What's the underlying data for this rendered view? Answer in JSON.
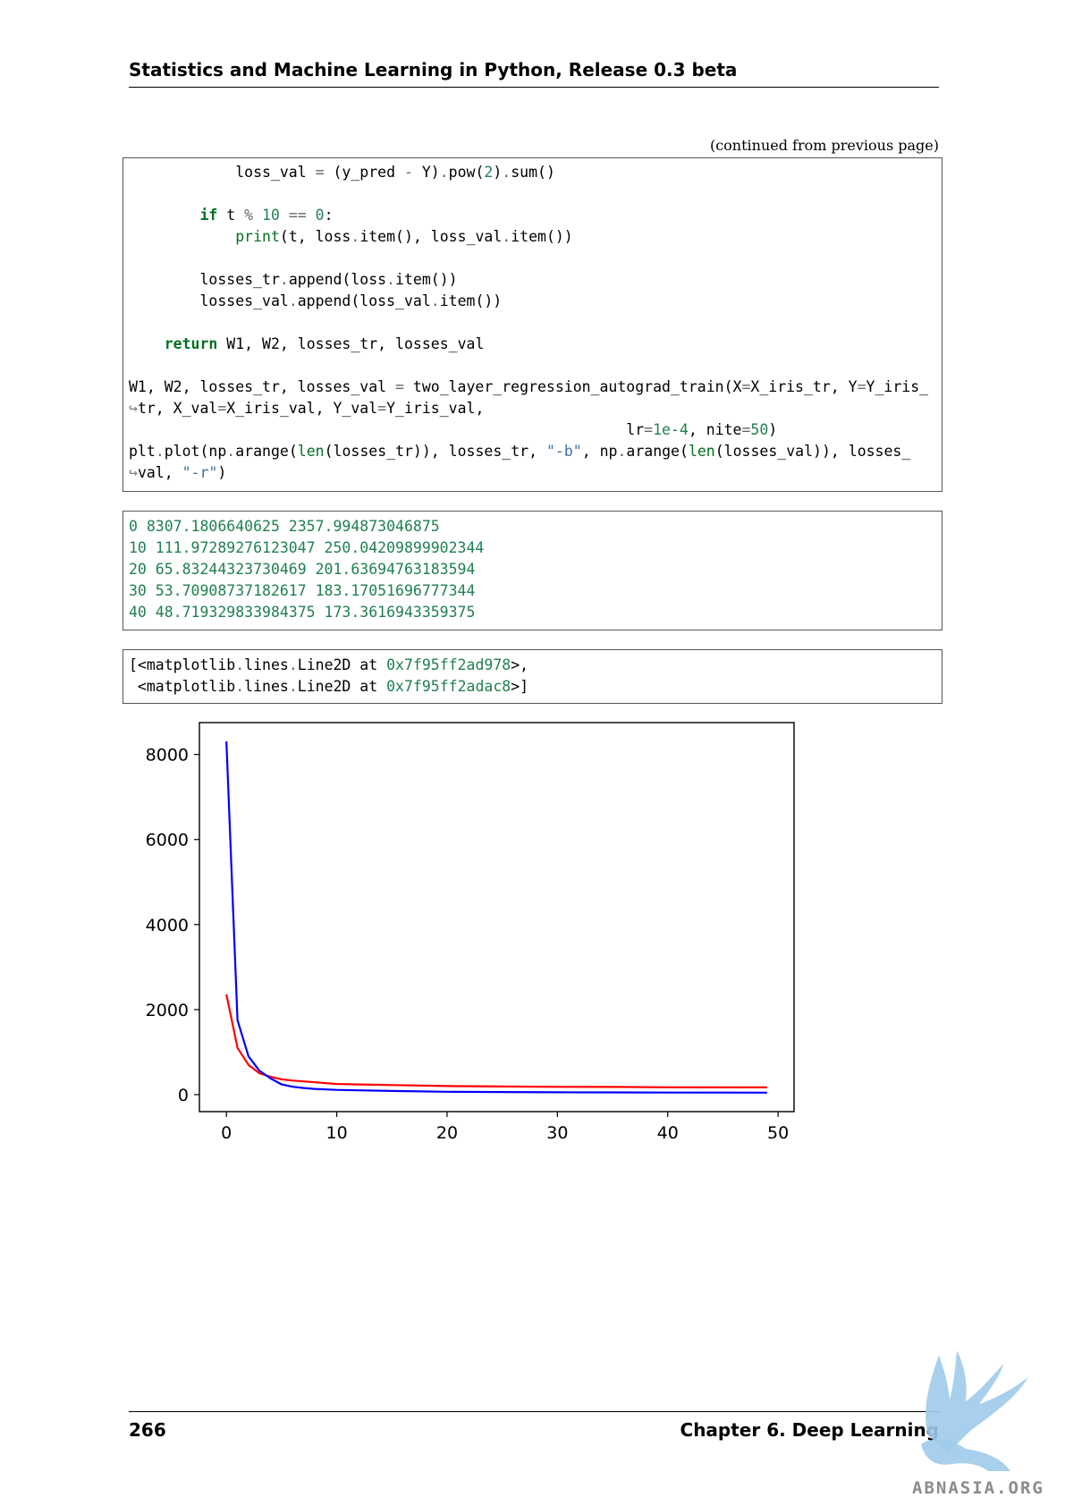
{
  "header": {
    "title": "Statistics and Machine Learning in Python, Release 0.3 beta"
  },
  "continued_note": "(continued from previous page)",
  "code": {
    "line_loss_val_var": "            loss_val",
    "line_loss_val_expr": " (y_pred ",
    "line_loss_val_expr2": " Y)",
    "line_loss_val_pow": "pow(",
    "line_loss_val_num": "2",
    "line_loss_val_sum": "sum()",
    "if_kw": "if",
    "if_t": " t ",
    "if_num1": "10",
    "if_num2": "0",
    "print_fn": "print",
    "print_args": "(t, loss",
    "print_args2": "item(), loss_val",
    "print_args3": "item())",
    "append_tr_a": "        losses_tr",
    "append_tr_b": "append(loss",
    "append_tr_c": "item())",
    "append_val_a": "        losses_val",
    "append_val_b": "append(loss_val",
    "append_val_c": "item())",
    "return_kw": "return",
    "return_vals": " W1, W2, losses_tr, losses_val",
    "call_a": "W1, W2, losses_tr, losses_val ",
    "call_b": " two_layer_regression_autograd_train(X",
    "call_c": "X_iris_tr, Y",
    "call_d": "Y_iris_",
    "cont_arrow": "↪",
    "call_e": "tr, X_val",
    "call_f": "X_iris_val, Y_val",
    "call_g": "Y_iris_val,",
    "lr_a": "                                                        lr",
    "lr_val": "1e-4",
    "lr_b": ", nite",
    "nite_val": "50",
    "lr_c": ")",
    "plot_a": "plt",
    "plot_b": "plot(np",
    "plot_c": "arange(",
    "len_fn": "len",
    "plot_d": "(losses_tr)), losses_tr, ",
    "plot_s1": "\"-b\"",
    "plot_e": ", np",
    "plot_f": "arange(",
    "plot_g": "(losses_val)), losses_",
    "plot_h": "val, ",
    "plot_s2": "\"-r\"",
    "plot_i": ")"
  },
  "output_lines": [
    "0 8307.1806640625 2357.994873046875",
    "10 111.97289276123047 250.04209899902344",
    "20 65.83244323730469 201.63694763183594",
    "30 53.70908737182617 183.17051696777344",
    "40 48.719329833984375 173.3616943359375"
  ],
  "repr": {
    "l1_a": "[<matplotlib",
    "l1_b": "lines",
    "l1_c": "Line2D at ",
    "l1_addr": "0x7f95ff2ad978",
    "l1_d": ">,",
    "l2_a": " <matplotlib",
    "l2_b": "lines",
    "l2_c": "Line2D at ",
    "l2_addr": "0x7f95ff2adac8",
    "l2_d": ">]"
  },
  "chart_data": {
    "type": "line",
    "title": "",
    "xlabel": "",
    "ylabel": "",
    "xlim": [
      -2.45,
      51.45
    ],
    "ylim": [
      -400,
      8750
    ],
    "xticks": [
      0,
      10,
      20,
      30,
      40,
      50
    ],
    "yticks": [
      0,
      2000,
      4000,
      6000,
      8000
    ],
    "grid": false,
    "series": [
      {
        "color": "#0000ff",
        "x": [
          0,
          1,
          2,
          3,
          4,
          5,
          6,
          7,
          8,
          10,
          12,
          15,
          20,
          25,
          30,
          35,
          40,
          45,
          49
        ],
        "values": [
          8307,
          1750,
          900,
          560,
          380,
          240,
          185,
          155,
          135,
          112,
          100,
          85,
          66,
          60,
          54,
          52,
          49,
          47,
          46
        ]
      },
      {
        "color": "#ff0000",
        "x": [
          0,
          1,
          2,
          3,
          4,
          5,
          6,
          7,
          8,
          10,
          12,
          15,
          20,
          25,
          30,
          35,
          40,
          45,
          49
        ],
        "values": [
          2358,
          1100,
          700,
          500,
          420,
          360,
          330,
          310,
          290,
          250,
          240,
          225,
          202,
          192,
          183,
          180,
          173,
          171,
          170
        ]
      }
    ],
    "colors": {
      "blue_series": "#0000ff",
      "red_series": "#ff0000"
    }
  },
  "footer": {
    "page_number": "266",
    "chapter": "Chapter 6.  Deep Learning"
  },
  "watermark": {
    "text": "ABNASIA.ORG"
  }
}
